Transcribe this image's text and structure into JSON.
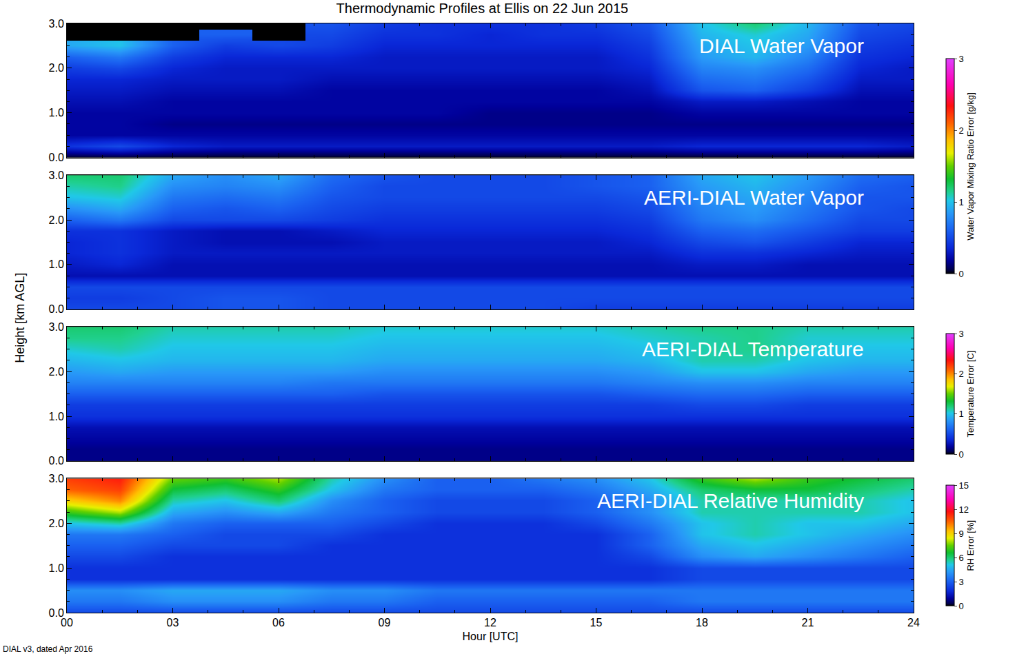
{
  "chart_data": {
    "type": "heatmap",
    "title": "Thermodynamic Profiles at Ellis on 22 Jun 2015",
    "xlabel": "Hour [UTC]",
    "ylabel": "Height [km AGL]",
    "footnote": "DIAL v3, dated Apr 2016",
    "xlim": [
      0,
      24
    ],
    "ylim": [
      0,
      3
    ],
    "xticks": [
      {
        "value": 0,
        "label": "00"
      },
      {
        "value": 3,
        "label": "03"
      },
      {
        "value": 6,
        "label": "06"
      },
      {
        "value": 9,
        "label": "09"
      },
      {
        "value": 12,
        "label": "12"
      },
      {
        "value": 15,
        "label": "15"
      },
      {
        "value": 18,
        "label": "18"
      },
      {
        "value": 21,
        "label": "21"
      },
      {
        "value": 24,
        "label": "24"
      }
    ],
    "yticks": [
      {
        "value": 0,
        "label": "0.0"
      },
      {
        "value": 1,
        "label": "1.0"
      },
      {
        "value": 2,
        "label": "2.0"
      },
      {
        "value": 3,
        "label": "3.0"
      }
    ],
    "x": [
      0,
      1.5,
      3,
      4.5,
      6,
      7.5,
      9,
      10.5,
      12,
      13.5,
      15,
      16.5,
      18,
      19.5,
      21,
      22.5,
      24
    ],
    "y": [
      0,
      0.25,
      0.5,
      0.75,
      1,
      1.25,
      1.5,
      1.75,
      2,
      2.25,
      2.5,
      2.75,
      3
    ],
    "colorbars": [
      {
        "title": "Water Vapor Mixing Ratio Error [g/kg]",
        "zlim": [
          0,
          3
        ],
        "zticks": [
          0,
          1,
          2,
          3
        ]
      },
      {
        "title": "Temperature Error [C]",
        "zlim": [
          0,
          3
        ],
        "zticks": [
          0,
          1,
          2,
          3
        ]
      },
      {
        "title": "RH Error [%]",
        "zlim": [
          0,
          15
        ],
        "zticks": [
          0,
          3,
          6,
          9,
          12,
          15
        ]
      }
    ],
    "panels": [
      {
        "title": "DIAL Water Vapor",
        "colorbar": 0,
        "tick_labels": "y",
        "z": [
          [
            0,
            0,
            0,
            0,
            0,
            0,
            0,
            0,
            0,
            0,
            0,
            0,
            0,
            0,
            0,
            0,
            0
          ],
          [
            0.4,
            0.5,
            0.35,
            0.3,
            0.3,
            0.3,
            0.3,
            0.3,
            0.3,
            0.3,
            0.3,
            0.3,
            0.35,
            0.35,
            0.35,
            0.35,
            0.3
          ],
          [
            0.2,
            0.2,
            0.2,
            0.2,
            0.2,
            0.2,
            0.2,
            0.2,
            0.2,
            0.2,
            0.2,
            0.2,
            0.2,
            0.2,
            0.2,
            0.2,
            0.2
          ],
          [
            0.2,
            0.2,
            0.15,
            0.15,
            0.15,
            0.15,
            0.15,
            0.15,
            0.15,
            0.15,
            0.15,
            0.15,
            0.15,
            0.15,
            0.15,
            0.15,
            0.15
          ],
          [
            0.2,
            0.2,
            0.2,
            0.2,
            0.2,
            0.2,
            0.2,
            0.2,
            0.15,
            0.15,
            0.15,
            0.15,
            0.2,
            0.2,
            0.2,
            0.2,
            0.2
          ],
          [
            0.25,
            0.25,
            0.2,
            0.2,
            0.2,
            0.2,
            0.2,
            0.2,
            0.2,
            0.2,
            0.2,
            0.2,
            0.3,
            0.3,
            0.25,
            0.2,
            0.2
          ],
          [
            0.3,
            0.3,
            0.25,
            0.25,
            0.25,
            0.2,
            0.2,
            0.2,
            0.2,
            0.2,
            0.2,
            0.25,
            0.55,
            0.6,
            0.45,
            0.25,
            0.25
          ],
          [
            0.35,
            0.35,
            0.3,
            0.3,
            0.3,
            0.25,
            0.25,
            0.25,
            0.25,
            0.25,
            0.25,
            0.3,
            0.65,
            0.7,
            0.55,
            0.3,
            0.3
          ],
          [
            0.45,
            0.5,
            0.35,
            0.3,
            0.3,
            0.3,
            0.3,
            0.3,
            0.3,
            0.3,
            0.3,
            0.35,
            0.75,
            0.8,
            0.65,
            0.35,
            0.3
          ],
          [
            0.6,
            0.7,
            0.45,
            0.35,
            0.35,
            0.35,
            0.3,
            0.3,
            0.3,
            0.3,
            0.3,
            0.4,
            0.85,
            0.95,
            0.75,
            0.4,
            0.35
          ],
          [
            0.9,
            1.0,
            0.6,
            0.45,
            0.5,
            0.45,
            0.35,
            0.35,
            0.35,
            0.35,
            0.35,
            0.45,
            0.9,
            1.0,
            0.85,
            0.45,
            0.4
          ],
          [
            null,
            null,
            null,
            0.6,
            null,
            0.5,
            0.4,
            0.4,
            0.35,
            0.4,
            0.4,
            0.5,
            0.95,
            1.05,
            0.9,
            0.5,
            0.45
          ],
          [
            null,
            null,
            null,
            null,
            null,
            0.55,
            0.45,
            0.4,
            0.4,
            0.4,
            0.45,
            0.55,
            1.0,
            1.2,
            0.95,
            0.55,
            0.5
          ]
        ]
      },
      {
        "title": "AERI-DIAL Water Vapor",
        "colorbar": 0,
        "tick_labels": "y",
        "z": [
          [
            0.5,
            0.5,
            0.5,
            0.55,
            0.55,
            0.5,
            0.5,
            0.5,
            0.5,
            0.5,
            0.45,
            0.45,
            0.45,
            0.45,
            0.45,
            0.45,
            0.45
          ],
          [
            0.45,
            0.45,
            0.5,
            0.55,
            0.55,
            0.5,
            0.5,
            0.5,
            0.5,
            0.5,
            0.5,
            0.5,
            0.5,
            0.5,
            0.5,
            0.5,
            0.5
          ],
          [
            0.5,
            0.5,
            0.5,
            0.5,
            0.5,
            0.5,
            0.5,
            0.5,
            0.5,
            0.5,
            0.5,
            0.5,
            0.5,
            0.5,
            0.5,
            0.5,
            0.5
          ],
          [
            0.25,
            0.25,
            0.25,
            0.25,
            0.25,
            0.25,
            0.25,
            0.25,
            0.25,
            0.25,
            0.25,
            0.25,
            0.25,
            0.25,
            0.25,
            0.25,
            0.25
          ],
          [
            0.3,
            0.35,
            0.25,
            0.25,
            0.25,
            0.25,
            0.25,
            0.25,
            0.25,
            0.25,
            0.25,
            0.25,
            0.3,
            0.3,
            0.25,
            0.25,
            0.25
          ],
          [
            0.35,
            0.4,
            0.3,
            0.3,
            0.3,
            0.3,
            0.3,
            0.3,
            0.3,
            0.3,
            0.3,
            0.3,
            0.4,
            0.4,
            0.35,
            0.3,
            0.3
          ],
          [
            0.35,
            0.4,
            0.3,
            0.25,
            0.25,
            0.25,
            0.3,
            0.3,
            0.3,
            0.3,
            0.3,
            0.35,
            0.5,
            0.55,
            0.45,
            0.35,
            0.35
          ],
          [
            0.4,
            0.4,
            0.3,
            0.25,
            0.25,
            0.3,
            0.35,
            0.35,
            0.35,
            0.35,
            0.35,
            0.4,
            0.6,
            0.65,
            0.55,
            0.45,
            0.45
          ],
          [
            0.6,
            0.7,
            0.5,
            0.5,
            0.5,
            0.45,
            0.4,
            0.4,
            0.4,
            0.4,
            0.4,
            0.45,
            0.7,
            0.8,
            0.65,
            0.5,
            0.5
          ],
          [
            0.8,
            0.9,
            0.6,
            0.55,
            0.6,
            0.5,
            0.45,
            0.45,
            0.45,
            0.45,
            0.45,
            0.5,
            0.75,
            0.85,
            0.7,
            0.55,
            0.5
          ],
          [
            1.0,
            1.05,
            0.7,
            0.65,
            0.7,
            0.55,
            0.5,
            0.5,
            0.5,
            0.5,
            0.5,
            0.55,
            0.8,
            0.9,
            0.75,
            0.55,
            0.55
          ],
          [
            1.1,
            1.15,
            0.8,
            0.75,
            0.8,
            0.6,
            0.5,
            0.5,
            0.5,
            0.5,
            0.55,
            0.6,
            0.85,
            0.95,
            0.8,
            0.6,
            0.55
          ],
          [
            1.2,
            1.2,
            0.9,
            0.8,
            0.9,
            0.65,
            0.55,
            0.5,
            0.5,
            0.5,
            0.55,
            0.6,
            0.9,
            1.0,
            0.85,
            0.65,
            0.6
          ]
        ]
      },
      {
        "title": "AERI-DIAL Temperature",
        "colorbar": 1,
        "tick_labels": "y",
        "z": [
          [
            0.15,
            0.15,
            0.15,
            0.15,
            0.15,
            0.15,
            0.15,
            0.15,
            0.15,
            0.15,
            0.15,
            0.15,
            0.15,
            0.15,
            0.15,
            0.15,
            0.15
          ],
          [
            0.15,
            0.15,
            0.15,
            0.15,
            0.15,
            0.15,
            0.15,
            0.15,
            0.15,
            0.15,
            0.15,
            0.15,
            0.15,
            0.15,
            0.15,
            0.15,
            0.15
          ],
          [
            0.2,
            0.2,
            0.2,
            0.2,
            0.2,
            0.2,
            0.2,
            0.2,
            0.2,
            0.2,
            0.2,
            0.2,
            0.2,
            0.2,
            0.2,
            0.2,
            0.2
          ],
          [
            0.25,
            0.25,
            0.25,
            0.25,
            0.25,
            0.25,
            0.25,
            0.25,
            0.25,
            0.25,
            0.25,
            0.25,
            0.25,
            0.25,
            0.25,
            0.25,
            0.25
          ],
          [
            0.4,
            0.4,
            0.4,
            0.4,
            0.4,
            0.4,
            0.4,
            0.4,
            0.4,
            0.4,
            0.4,
            0.4,
            0.4,
            0.4,
            0.4,
            0.4,
            0.4
          ],
          [
            0.45,
            0.45,
            0.45,
            0.45,
            0.45,
            0.45,
            0.45,
            0.45,
            0.45,
            0.45,
            0.45,
            0.45,
            0.5,
            0.5,
            0.45,
            0.45,
            0.45
          ],
          [
            0.6,
            0.6,
            0.6,
            0.6,
            0.6,
            0.6,
            0.55,
            0.55,
            0.55,
            0.55,
            0.55,
            0.6,
            0.65,
            0.65,
            0.6,
            0.6,
            0.6
          ],
          [
            0.75,
            0.75,
            0.75,
            0.75,
            0.75,
            0.7,
            0.7,
            0.7,
            0.7,
            0.7,
            0.7,
            0.75,
            0.8,
            0.8,
            0.75,
            0.75,
            0.75
          ],
          [
            0.85,
            0.9,
            0.85,
            0.85,
            0.85,
            0.85,
            0.8,
            0.8,
            0.8,
            0.8,
            0.8,
            0.85,
            1.0,
            1.0,
            0.9,
            0.85,
            0.85
          ],
          [
            0.95,
            1.0,
            0.95,
            0.95,
            0.95,
            0.95,
            0.9,
            0.9,
            0.9,
            0.9,
            0.9,
            0.95,
            1.1,
            1.1,
            1.0,
            0.95,
            0.95
          ],
          [
            1.05,
            1.1,
            1.0,
            1.0,
            1.0,
            1.0,
            0.95,
            0.95,
            0.95,
            0.95,
            0.95,
            1.0,
            1.1,
            1.15,
            1.05,
            1.0,
            1.0
          ],
          [
            1.15,
            1.15,
            1.05,
            1.05,
            1.05,
            1.05,
            1.0,
            1.0,
            1.0,
            1.0,
            1.0,
            1.05,
            1.1,
            1.15,
            1.05,
            1.05,
            1.05
          ],
          [
            1.2,
            1.2,
            1.1,
            1.1,
            1.1,
            1.1,
            1.05,
            1.05,
            1.05,
            1.05,
            1.05,
            1.1,
            1.15,
            1.15,
            1.1,
            1.1,
            1.1
          ]
        ]
      },
      {
        "title": "AERI-DIAL Relative Humidity",
        "colorbar": 2,
        "tick_labels": true,
        "z": [
          [
            2.5,
            2.5,
            2.5,
            2.5,
            2.5,
            2.5,
            2.5,
            2.5,
            2.5,
            2.5,
            2.5,
            2.5,
            2.5,
            2.5,
            2.5,
            2.5,
            2.5
          ],
          [
            3.5,
            3.5,
            4,
            4,
            4,
            3.5,
            3.5,
            3,
            3,
            3,
            3,
            3,
            3.5,
            3.5,
            3.5,
            3.5,
            3.5
          ],
          [
            4,
            4,
            4.5,
            4.5,
            4.5,
            4,
            4,
            3.5,
            3.5,
            3.5,
            3.5,
            3.5,
            3.5,
            3.5,
            3.5,
            3.5,
            3.5
          ],
          [
            2,
            2,
            2,
            2,
            2,
            2,
            2,
            2,
            2,
            2,
            2,
            2,
            2.5,
            2.5,
            2.5,
            2.5,
            2.5
          ],
          [
            2,
            2,
            2,
            2,
            2,
            2,
            2,
            2,
            2,
            2,
            2,
            2,
            2.5,
            2.5,
            2.5,
            2.5,
            2.5
          ],
          [
            2.5,
            2.5,
            2,
            2,
            2,
            2,
            2,
            2,
            2,
            2,
            2,
            2.5,
            4,
            4.5,
            4,
            3.5,
            3
          ],
          [
            3,
            3,
            2.5,
            2.5,
            2.5,
            2,
            2,
            2,
            2,
            2,
            2,
            3,
            4.5,
            5,
            4.5,
            4,
            3.5
          ],
          [
            3.5,
            3.5,
            3,
            2.5,
            2.5,
            2.5,
            2,
            2,
            2,
            2,
            2,
            3,
            5,
            5.5,
            5,
            4.5,
            4
          ],
          [
            5,
            5.5,
            3.5,
            3,
            3,
            3,
            2.5,
            2,
            2,
            2,
            2.5,
            3.5,
            5,
            5.5,
            5,
            5,
            4.5
          ],
          [
            7,
            8,
            4.5,
            4,
            4.5,
            3.5,
            3,
            2.5,
            2.5,
            2.5,
            3,
            4,
            5.5,
            5.5,
            5.5,
            5.5,
            5
          ],
          [
            9,
            10,
            5.5,
            5,
            6,
            4,
            3,
            2.5,
            2.5,
            2.5,
            3,
            4,
            5.5,
            5.5,
            5.5,
            5.5,
            5
          ],
          [
            10.5,
            11,
            6.5,
            6,
            7,
            5,
            3.5,
            3,
            3,
            3,
            3.5,
            4.5,
            6,
            6.5,
            6.5,
            6,
            5.5
          ],
          [
            11,
            11.5,
            7.5,
            7,
            8,
            5.5,
            4,
            3,
            3,
            3.5,
            4,
            5,
            7,
            8,
            7,
            6.5,
            6
          ]
        ]
      }
    ]
  }
}
